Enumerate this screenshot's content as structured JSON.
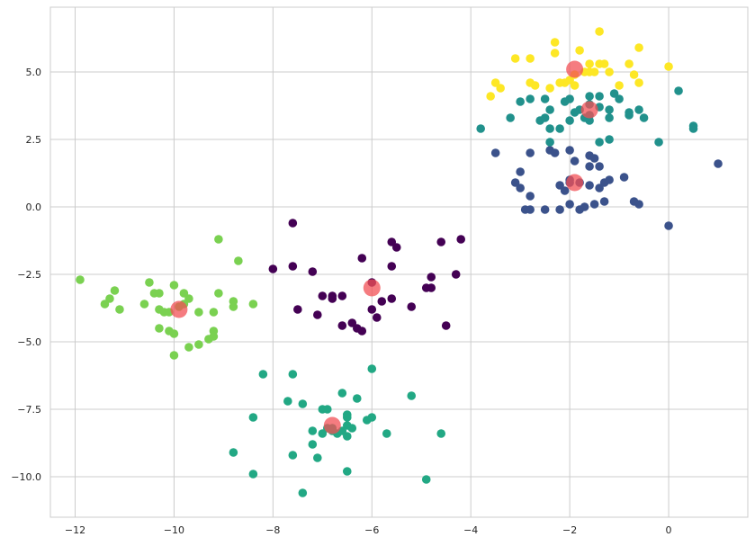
{
  "chart_data": {
    "type": "scatter",
    "title": "",
    "xlabel": "",
    "ylabel": "",
    "xlim": [
      -12.5,
      1.6
    ],
    "ylim": [
      -11.5,
      7.4
    ],
    "xticks": [
      -12,
      -10,
      -8,
      -6,
      -4,
      -2,
      0
    ],
    "yticks": [
      5.0,
      2.5,
      0.0,
      -2.5,
      -5.0,
      -7.5,
      -10.0
    ],
    "xtick_labels": [
      "−12",
      "−10",
      "−8",
      "−6",
      "−4",
      "−2",
      "0"
    ],
    "ytick_labels": [
      "5.0",
      "2.5",
      "0.0",
      "−2.5",
      "−5.0",
      "−7.5",
      "−10.0"
    ],
    "grid": true,
    "legend": "none",
    "series": [
      {
        "color": "#440154",
        "points": [
          [
            -7.6,
            -0.6
          ],
          [
            -7.6,
            -2.2
          ],
          [
            -8.0,
            -2.3
          ],
          [
            -7.2,
            -2.4
          ],
          [
            -6.2,
            -1.9
          ],
          [
            -5.6,
            -1.3
          ],
          [
            -5.5,
            -1.5
          ],
          [
            -5.6,
            -2.2
          ],
          [
            -6.0,
            -2.8
          ],
          [
            -4.6,
            -1.3
          ],
          [
            -4.2,
            -1.2
          ],
          [
            -4.8,
            -2.6
          ],
          [
            -4.3,
            -2.5
          ],
          [
            -4.9,
            -3.0
          ],
          [
            -4.8,
            -3.0
          ],
          [
            -7.0,
            -3.3
          ],
          [
            -6.8,
            -3.3
          ],
          [
            -6.8,
            -3.4
          ],
          [
            -6.6,
            -3.3
          ],
          [
            -7.5,
            -3.8
          ],
          [
            -7.1,
            -4.0
          ],
          [
            -6.0,
            -3.8
          ],
          [
            -5.8,
            -3.5
          ],
          [
            -5.6,
            -3.4
          ],
          [
            -5.9,
            -4.1
          ],
          [
            -5.2,
            -3.7
          ],
          [
            -6.4,
            -4.3
          ],
          [
            -6.3,
            -4.5
          ],
          [
            -6.2,
            -4.6
          ],
          [
            -6.6,
            -4.4
          ],
          [
            -4.5,
            -4.4
          ]
        ]
      },
      {
        "color": "#3b528b",
        "points": [
          [
            -3.5,
            2.0
          ],
          [
            -3.0,
            1.3
          ],
          [
            -2.8,
            2.0
          ],
          [
            -2.4,
            2.1
          ],
          [
            -2.3,
            2.0
          ],
          [
            -2.0,
            2.1
          ],
          [
            -1.6,
            1.9
          ],
          [
            -1.5,
            1.8
          ],
          [
            -1.9,
            1.7
          ],
          [
            -1.6,
            1.5
          ],
          [
            -1.4,
            1.5
          ],
          [
            -1.3,
            0.9
          ],
          [
            -1.2,
            1.0
          ],
          [
            -0.9,
            1.1
          ],
          [
            -3.1,
            0.9
          ],
          [
            -3.0,
            0.7
          ],
          [
            -2.8,
            0.4
          ],
          [
            -2.0,
            0.9
          ],
          [
            -2.1,
            0.6
          ],
          [
            -2.2,
            0.8
          ],
          [
            -2.0,
            1.0
          ],
          [
            -1.8,
            0.9
          ],
          [
            -1.6,
            0.8
          ],
          [
            -1.4,
            0.7
          ],
          [
            -2.0,
            0.1
          ],
          [
            -1.7,
            0.0
          ],
          [
            -1.5,
            0.1
          ],
          [
            -1.3,
            0.2
          ],
          [
            -2.2,
            -0.1
          ],
          [
            -1.8,
            -0.1
          ],
          [
            -0.6,
            0.1
          ],
          [
            -0.7,
            0.2
          ],
          [
            -2.9,
            -0.1
          ],
          [
            -2.8,
            -0.1
          ],
          [
            -2.5,
            -0.1
          ],
          [
            0.0,
            -0.7
          ],
          [
            1.0,
            1.6
          ]
        ]
      },
      {
        "color": "#21918c",
        "points": [
          [
            -3.8,
            2.9
          ],
          [
            -3.2,
            3.3
          ],
          [
            -3.0,
            3.9
          ],
          [
            -2.8,
            4.0
          ],
          [
            -2.5,
            4.0
          ],
          [
            -2.0,
            4.0
          ],
          [
            -1.6,
            4.1
          ],
          [
            -1.4,
            4.1
          ],
          [
            -1.1,
            4.2
          ],
          [
            -1.0,
            4.0
          ],
          [
            -2.1,
            3.9
          ],
          [
            -1.8,
            3.6
          ],
          [
            -1.6,
            3.8
          ],
          [
            -1.4,
            3.7
          ],
          [
            -1.2,
            3.6
          ],
          [
            -0.8,
            3.5
          ],
          [
            -0.5,
            3.3
          ],
          [
            -2.6,
            3.2
          ],
          [
            -2.5,
            3.3
          ],
          [
            -2.0,
            3.2
          ],
          [
            -1.6,
            3.2
          ],
          [
            -1.2,
            3.3
          ],
          [
            -0.8,
            3.4
          ],
          [
            -1.7,
            3.3
          ],
          [
            -1.6,
            3.4
          ],
          [
            -1.4,
            2.4
          ],
          [
            -1.2,
            2.5
          ],
          [
            -2.4,
            2.4
          ],
          [
            -2.2,
            2.9
          ],
          [
            -0.2,
            2.4
          ],
          [
            0.2,
            4.3
          ],
          [
            0.5,
            3.0
          ],
          [
            0.5,
            2.9
          ],
          [
            -0.6,
            3.6
          ],
          [
            -1.9,
            3.5
          ],
          [
            -2.4,
            3.6
          ],
          [
            -2.4,
            2.9
          ]
        ]
      },
      {
        "color": "#22a884",
        "points": [
          [
            -8.2,
            -6.2
          ],
          [
            -7.6,
            -6.2
          ],
          [
            -6.0,
            -6.0
          ],
          [
            -8.4,
            -7.8
          ],
          [
            -7.7,
            -7.2
          ],
          [
            -7.4,
            -7.3
          ],
          [
            -6.6,
            -6.9
          ],
          [
            -6.3,
            -7.1
          ],
          [
            -6.5,
            -7.7
          ],
          [
            -6.5,
            -7.8
          ],
          [
            -6.0,
            -7.8
          ],
          [
            -6.1,
            -7.9
          ],
          [
            -5.2,
            -7.0
          ],
          [
            -7.0,
            -7.5
          ],
          [
            -6.9,
            -7.5
          ],
          [
            -7.2,
            -8.3
          ],
          [
            -7.0,
            -8.4
          ],
          [
            -6.8,
            -8.3
          ],
          [
            -6.8,
            -8.2
          ],
          [
            -6.7,
            -8.4
          ],
          [
            -6.5,
            -8.1
          ],
          [
            -6.4,
            -8.2
          ],
          [
            -6.6,
            -8.3
          ],
          [
            -6.5,
            -8.5
          ],
          [
            -5.7,
            -8.4
          ],
          [
            -4.6,
            -8.4
          ],
          [
            -7.2,
            -8.8
          ],
          [
            -7.6,
            -9.2
          ],
          [
            -7.1,
            -9.3
          ],
          [
            -8.8,
            -9.1
          ],
          [
            -8.4,
            -9.9
          ],
          [
            -6.5,
            -9.8
          ],
          [
            -4.9,
            -10.1
          ],
          [
            -7.4,
            -10.6
          ],
          [
            -6.9,
            -8.2
          ]
        ]
      },
      {
        "color": "#7ad151",
        "points": [
          [
            -11.9,
            -2.7
          ],
          [
            -9.1,
            -1.2
          ],
          [
            -8.7,
            -2.0
          ],
          [
            -10.5,
            -2.8
          ],
          [
            -10.0,
            -2.9
          ],
          [
            -11.2,
            -3.1
          ],
          [
            -11.3,
            -3.4
          ],
          [
            -11.4,
            -3.6
          ],
          [
            -11.1,
            -3.8
          ],
          [
            -10.4,
            -3.2
          ],
          [
            -10.3,
            -3.2
          ],
          [
            -10.6,
            -3.6
          ],
          [
            -9.8,
            -3.2
          ],
          [
            -9.1,
            -3.2
          ],
          [
            -9.7,
            -3.4
          ],
          [
            -10.3,
            -3.8
          ],
          [
            -10.2,
            -3.9
          ],
          [
            -10.1,
            -3.9
          ],
          [
            -9.9,
            -3.7
          ],
          [
            -9.8,
            -3.6
          ],
          [
            -9.5,
            -3.9
          ],
          [
            -9.2,
            -3.9
          ],
          [
            -8.8,
            -3.5
          ],
          [
            -8.8,
            -3.7
          ],
          [
            -8.4,
            -3.6
          ],
          [
            -10.3,
            -4.5
          ],
          [
            -10.0,
            -4.7
          ],
          [
            -10.1,
            -4.6
          ],
          [
            -9.2,
            -4.6
          ],
          [
            -9.2,
            -4.8
          ],
          [
            -9.3,
            -4.9
          ],
          [
            -9.5,
            -5.1
          ],
          [
            -9.7,
            -5.2
          ],
          [
            -10.0,
            -5.5
          ]
        ]
      },
      {
        "color": "#fde725",
        "points": [
          [
            -2.3,
            6.1
          ],
          [
            -1.4,
            6.5
          ],
          [
            -2.3,
            5.7
          ],
          [
            -3.1,
            5.5
          ],
          [
            -2.8,
            5.5
          ],
          [
            -1.8,
            5.8
          ],
          [
            -1.6,
            5.3
          ],
          [
            -1.4,
            5.3
          ],
          [
            -1.6,
            5.0
          ],
          [
            -1.3,
            5.3
          ],
          [
            -0.6,
            5.9
          ],
          [
            -0.8,
            5.3
          ],
          [
            -1.7,
            5.0
          ],
          [
            -1.5,
            5.0
          ],
          [
            -1.2,
            5.0
          ],
          [
            -0.7,
            4.9
          ],
          [
            -0.6,
            4.6
          ],
          [
            -1.9,
            4.9
          ],
          [
            -2.0,
            4.7
          ],
          [
            -2.1,
            4.6
          ],
          [
            -2.2,
            4.6
          ],
          [
            -2.4,
            4.4
          ],
          [
            -2.8,
            4.6
          ],
          [
            -2.7,
            4.5
          ],
          [
            -3.5,
            4.6
          ],
          [
            -3.4,
            4.4
          ],
          [
            -3.6,
            4.1
          ],
          [
            -1.9,
            4.5
          ],
          [
            0.0,
            5.2
          ],
          [
            -1.0,
            4.5
          ]
        ]
      }
    ],
    "centers": {
      "color": "#f25055",
      "points": [
        [
          -9.9,
          -3.8
        ],
        [
          -6.0,
          -3.0
        ],
        [
          -6.8,
          -8.1
        ],
        [
          -1.9,
          5.1
        ],
        [
          -1.6,
          3.6
        ],
        [
          -1.9,
          0.9
        ]
      ]
    }
  }
}
